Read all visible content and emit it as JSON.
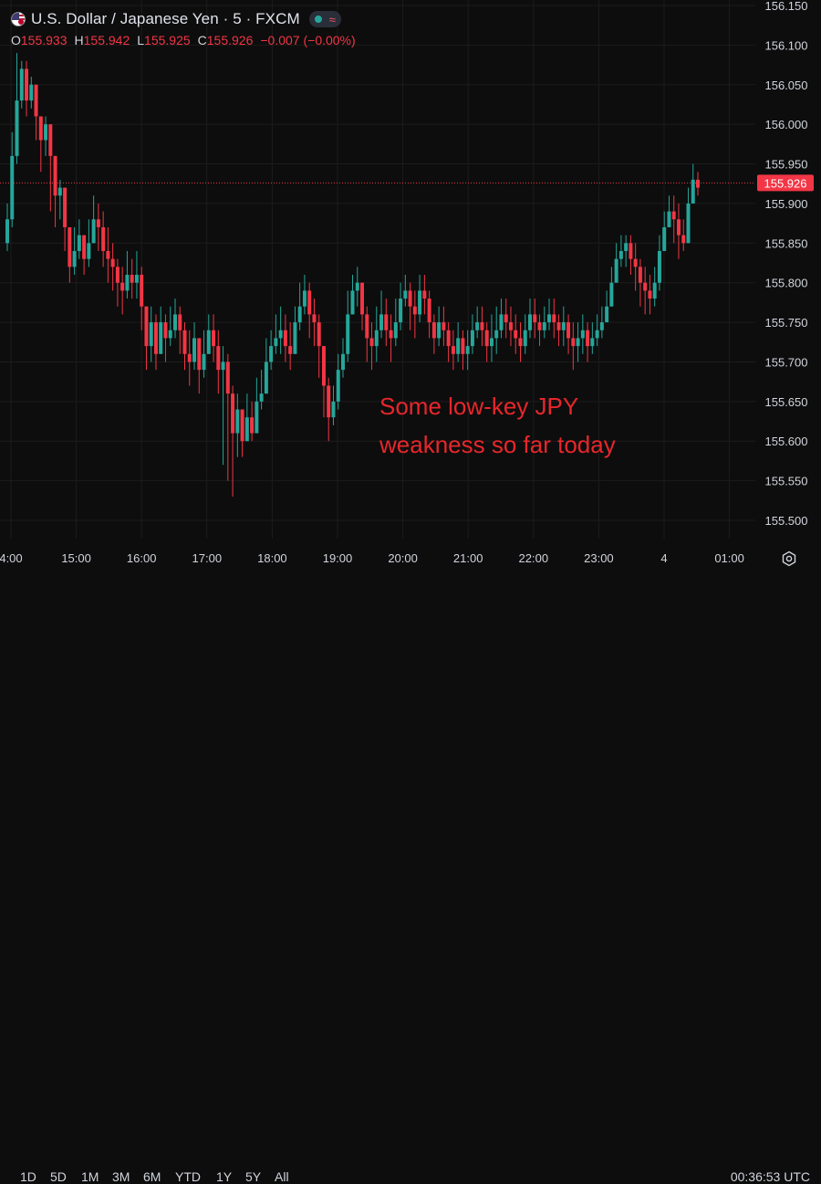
{
  "header": {
    "title": "U.S. Dollar / Japanese Yen · 5 · FXCM",
    "ohlc": {
      "o_label": "O",
      "o": "155.933",
      "h_label": "H",
      "h": "155.942",
      "l_label": "L",
      "l": "155.925",
      "c_label": "C",
      "c": "155.926",
      "change": "−0.007 (−0.00%)"
    },
    "status_icon": "market-open-dot",
    "wave_icon": "≈"
  },
  "colors": {
    "background": "#0d0d0d",
    "up": "#26a69a",
    "down": "#f23645",
    "annotation": "#e8262b",
    "price_label_bg": "#f23645",
    "grid": "#1c1c1c"
  },
  "chart_data": {
    "type": "candlestick",
    "title": "U.S. Dollar / Japanese Yen · 5 · FXCM",
    "x_ticks": [
      "4:00",
      "15:00",
      "16:00",
      "17:00",
      "18:00",
      "19:00",
      "20:00",
      "21:00",
      "22:00",
      "23:00",
      "4",
      "01:00"
    ],
    "y_ticks": [
      "156.150",
      "156.100",
      "156.050",
      "156.000",
      "155.950",
      "155.900",
      "155.850",
      "155.800",
      "155.750",
      "155.700",
      "155.650",
      "155.600",
      "155.550",
      "155.500"
    ],
    "ylim": [
      155.47,
      156.16
    ],
    "last_price": "155.926",
    "last_price_value": 155.926,
    "annotation": "Some low-key JPY weakness so far today",
    "close": [
      155.88,
      155.96,
      156.03,
      156.07,
      156.03,
      156.05,
      156.01,
      155.98,
      156.0,
      155.96,
      155.91,
      155.92,
      155.87,
      155.82,
      155.84,
      155.86,
      155.83,
      155.85,
      155.88,
      155.87,
      155.84,
      155.83,
      155.82,
      155.8,
      155.79,
      155.81,
      155.8,
      155.81,
      155.77,
      155.72,
      155.75,
      155.71,
      155.75,
      155.73,
      155.74,
      155.76,
      155.74,
      155.71,
      155.7,
      155.73,
      155.69,
      155.71,
      155.74,
      155.72,
      155.69,
      155.7,
      155.66,
      155.61,
      155.64,
      155.6,
      155.63,
      155.61,
      155.65,
      155.66,
      155.7,
      155.72,
      155.73,
      155.74,
      155.72,
      155.71,
      155.75,
      155.77,
      155.79,
      155.76,
      155.75,
      155.72,
      155.67,
      155.63,
      155.65,
      155.69,
      155.71,
      155.76,
      155.79,
      155.8,
      155.76,
      155.73,
      155.72,
      155.74,
      155.76,
      155.74,
      155.73,
      155.75,
      155.78,
      155.79,
      155.77,
      155.76,
      155.79,
      155.78,
      155.75,
      155.73,
      155.75,
      155.74,
      155.72,
      155.71,
      155.73,
      155.71,
      155.72,
      155.74,
      155.75,
      155.74,
      155.72,
      155.73,
      155.74,
      155.76,
      155.75,
      155.74,
      155.73,
      155.72,
      155.74,
      155.76,
      155.75,
      155.74,
      155.75,
      155.76,
      155.75,
      155.74,
      155.75,
      155.73,
      155.72,
      155.73,
      155.74,
      155.72,
      155.73,
      155.74,
      155.75,
      155.77,
      155.8,
      155.83,
      155.84,
      155.85,
      155.83,
      155.82,
      155.8,
      155.79,
      155.78,
      155.8,
      155.84,
      155.87,
      155.89,
      155.88,
      155.86,
      155.85,
      155.9,
      155.93,
      155.92
    ],
    "high": [
      155.9,
      155.99,
      156.09,
      156.08,
      156.08,
      156.06,
      156.04,
      156.0,
      156.01,
      155.98,
      155.94,
      155.93,
      155.9,
      155.86,
      155.87,
      155.88,
      155.86,
      155.88,
      155.91,
      155.9,
      155.89,
      155.87,
      155.85,
      155.83,
      155.82,
      155.84,
      155.83,
      155.84,
      155.82,
      155.77,
      155.77,
      155.76,
      155.77,
      155.76,
      155.77,
      155.78,
      155.77,
      155.75,
      155.74,
      155.75,
      155.73,
      155.74,
      155.76,
      155.76,
      155.74,
      155.72,
      155.71,
      155.67,
      155.66,
      155.64,
      155.66,
      155.65,
      155.68,
      155.69,
      155.73,
      155.74,
      155.76,
      155.77,
      155.76,
      155.75,
      155.77,
      155.8,
      155.81,
      155.8,
      155.78,
      155.76,
      155.72,
      155.68,
      155.67,
      155.71,
      155.73,
      155.79,
      155.81,
      155.82,
      155.8,
      155.77,
      155.75,
      155.77,
      155.79,
      155.78,
      155.76,
      155.78,
      155.8,
      155.81,
      155.8,
      155.79,
      155.81,
      155.81,
      155.79,
      155.76,
      155.77,
      155.77,
      155.75,
      155.74,
      155.75,
      155.74,
      155.74,
      155.76,
      155.77,
      155.77,
      155.75,
      155.76,
      155.77,
      155.78,
      155.78,
      155.77,
      155.76,
      155.75,
      155.76,
      155.78,
      155.78,
      155.76,
      155.77,
      155.78,
      155.78,
      155.76,
      155.77,
      155.76,
      155.75,
      155.75,
      155.76,
      155.75,
      155.75,
      155.76,
      155.77,
      155.79,
      155.82,
      155.85,
      155.86,
      155.86,
      155.86,
      155.85,
      155.83,
      155.82,
      155.81,
      155.82,
      155.86,
      155.89,
      155.91,
      155.91,
      155.9,
      155.88,
      155.92,
      155.95,
      155.94
    ],
    "low": [
      155.84,
      155.87,
      155.95,
      156.02,
      156.01,
      156.02,
      155.98,
      155.94,
      155.96,
      155.89,
      155.87,
      155.88,
      155.84,
      155.8,
      155.81,
      155.83,
      155.81,
      155.82,
      155.85,
      155.84,
      155.82,
      155.8,
      155.79,
      155.77,
      155.76,
      155.78,
      155.78,
      155.78,
      155.74,
      155.69,
      155.7,
      155.69,
      155.72,
      155.7,
      155.72,
      155.73,
      155.71,
      155.69,
      155.67,
      155.69,
      155.66,
      155.68,
      155.71,
      155.7,
      155.66,
      155.57,
      155.55,
      155.53,
      155.58,
      155.58,
      155.6,
      155.6,
      155.62,
      155.64,
      155.66,
      155.69,
      155.71,
      155.71,
      155.7,
      155.69,
      155.71,
      155.74,
      155.76,
      155.73,
      155.72,
      155.68,
      155.63,
      155.6,
      155.62,
      155.64,
      155.68,
      155.7,
      155.76,
      155.77,
      155.74,
      155.7,
      155.69,
      155.7,
      155.73,
      155.72,
      155.7,
      155.72,
      155.74,
      155.77,
      155.74,
      155.73,
      155.75,
      155.76,
      155.73,
      155.71,
      155.72,
      155.72,
      155.7,
      155.69,
      155.7,
      155.69,
      155.69,
      155.71,
      155.73,
      155.72,
      155.7,
      155.7,
      155.71,
      155.73,
      155.73,
      155.72,
      155.71,
      155.7,
      155.71,
      155.73,
      155.73,
      155.72,
      155.73,
      155.74,
      155.73,
      155.72,
      155.72,
      155.71,
      155.69,
      155.7,
      155.71,
      155.7,
      155.71,
      155.72,
      155.73,
      155.75,
      155.77,
      155.8,
      155.82,
      155.82,
      155.81,
      155.79,
      155.77,
      155.76,
      155.76,
      155.77,
      155.79,
      155.84,
      155.87,
      155.85,
      155.83,
      155.84,
      155.86,
      155.9,
      155.91
    ]
  },
  "bottom_bar": {
    "periods": [
      "1D",
      "5D",
      "1M",
      "3M",
      "6M",
      "YTD",
      "1Y",
      "5Y",
      "All"
    ],
    "clock": "00:36:53 UTC"
  }
}
